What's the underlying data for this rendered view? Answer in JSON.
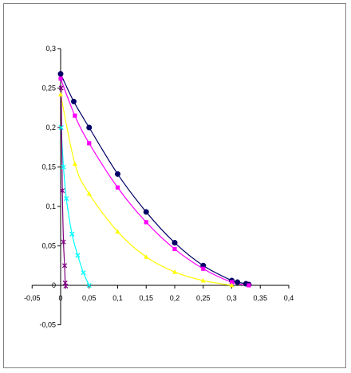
{
  "chart_data": {
    "type": "scatter",
    "title": "",
    "xlabel": "",
    "ylabel": "",
    "xlim": [
      -0.05,
      0.4
    ],
    "ylim": [
      -0.05,
      0.3
    ],
    "x_ticks": [
      -0.05,
      0,
      0.05,
      0.1,
      0.15,
      0.2,
      0.25,
      0.3,
      0.35,
      0.4
    ],
    "x_tick_labels": [
      "-0,05",
      "0",
      "0,05",
      "0,1",
      "0,15",
      "0,2",
      "0,25",
      "0,3",
      "0,35",
      "0,4"
    ],
    "y_ticks": [
      -0.05,
      0,
      0.05,
      0.1,
      0.15,
      0.2,
      0.25,
      0.3
    ],
    "y_tick_labels": [
      "-0,05",
      "0",
      "0,05",
      "0,1",
      "0,15",
      "0,2",
      "0,25",
      "0,3"
    ],
    "grid": false,
    "legend": "none",
    "series": [
      {
        "color": "#000066",
        "marker": "circle",
        "x": [
          0,
          0.023,
          0.05,
          0.1,
          0.15,
          0.2,
          0.25,
          0.3,
          0.31,
          0.325,
          0.33
        ],
        "y": [
          0.268,
          0.233,
          0.2,
          0.141,
          0.093,
          0.054,
          0.025,
          0.006,
          0.004,
          0.002,
          0.001
        ]
      },
      {
        "color": "#ff00ff",
        "marker": "square",
        "x": [
          0,
          0.025,
          0.05,
          0.1,
          0.15,
          0.2,
          0.25,
          0.3,
          0.33
        ],
        "y": [
          0.262,
          0.215,
          0.18,
          0.124,
          0.08,
          0.046,
          0.021,
          0.004,
          0.0
        ]
      },
      {
        "color": "#ffff00",
        "marker": "triangle",
        "x": [
          0,
          0.025,
          0.05,
          0.1,
          0.15,
          0.2,
          0.25,
          0.3
        ],
        "y": [
          0.242,
          0.154,
          0.116,
          0.068,
          0.036,
          0.017,
          0.006,
          0.0
        ]
      },
      {
        "color": "#00ffff",
        "marker": "x",
        "x": [
          0.001,
          0.005,
          0.01,
          0.02,
          0.03,
          0.04,
          0.05
        ],
        "y": [
          0.2,
          0.15,
          0.11,
          0.065,
          0.038,
          0.016,
          0.0
        ]
      },
      {
        "color": "#800080",
        "marker": "star",
        "x": [
          0.001,
          0.003,
          0.005,
          0.007,
          0.008,
          0.009
        ],
        "y": [
          0.25,
          0.12,
          0.055,
          0.025,
          0.003,
          -0.001
        ]
      }
    ]
  }
}
